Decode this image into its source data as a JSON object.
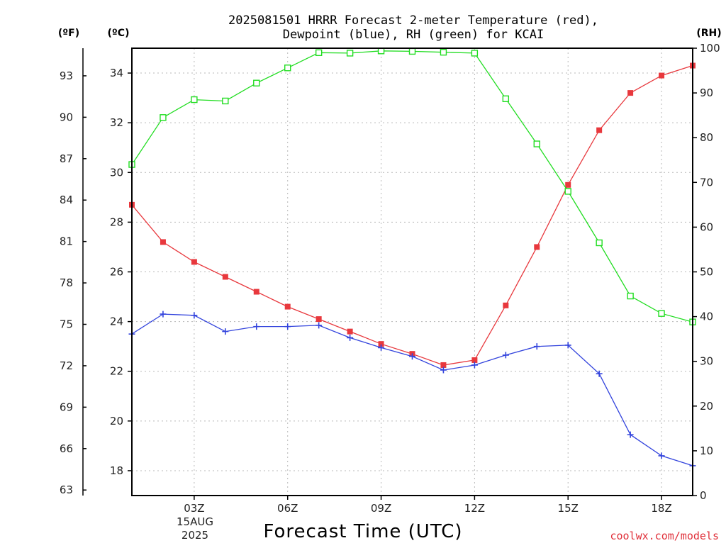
{
  "chart_data": {
    "type": "line",
    "title_line1": "2025081501 HRRR Forecast 2-meter Temperature (red),",
    "title_line2": "Dewpoint (blue), RH (green) for KCAI",
    "xlabel": "Forecast Time (UTC)",
    "credit": "coolwx.com/models",
    "x_hours": [
      1,
      2,
      3,
      4,
      5,
      6,
      7,
      8,
      9,
      10,
      11,
      12,
      13,
      14,
      15,
      16,
      17,
      18,
      19
    ],
    "xlim": [
      1,
      19
    ],
    "x_ticks": [
      {
        "hour": 3,
        "label": "03Z"
      },
      {
        "hour": 6,
        "label": "06Z"
      },
      {
        "hour": 9,
        "label": "09Z"
      },
      {
        "hour": 12,
        "label": "12Z"
      },
      {
        "hour": 15,
        "label": "15Z"
      },
      {
        "hour": 18,
        "label": "18Z"
      }
    ],
    "date_label": [
      "15AUG",
      "2025"
    ],
    "axes": {
      "celsius": {
        "unit_label": "(ºC)",
        "ylim": [
          17,
          35
        ],
        "ticks": [
          18,
          20,
          22,
          24,
          26,
          28,
          30,
          32,
          34
        ]
      },
      "fahrenheit": {
        "unit_label": "(ºF)",
        "ticks": [
          63,
          66,
          69,
          72,
          75,
          78,
          81,
          84,
          87,
          90,
          93
        ]
      },
      "rh": {
        "unit_label": "(RH)",
        "ylim": [
          0,
          100
        ],
        "ticks": [
          0,
          10,
          20,
          30,
          40,
          50,
          60,
          70,
          80,
          90,
          100
        ]
      }
    },
    "grid": true,
    "series": [
      {
        "key": "temperature",
        "axis": "celsius",
        "color": "#e8383d",
        "marker": "filled-square",
        "values": [
          28.7,
          27.2,
          26.4,
          25.8,
          25.2,
          24.6,
          24.1,
          23.6,
          23.1,
          22.7,
          22.25,
          22.45,
          24.65,
          27.0,
          29.5,
          31.7,
          33.2,
          33.9,
          34.3
        ]
      },
      {
        "key": "dewpoint",
        "axis": "celsius",
        "color": "#3344dd",
        "marker": "plus",
        "values": [
          23.5,
          24.3,
          24.25,
          23.6,
          23.8,
          23.8,
          23.85,
          23.35,
          22.95,
          22.6,
          22.05,
          22.25,
          22.65,
          23.0,
          23.05,
          21.9,
          19.45,
          18.6,
          18.2
        ]
      },
      {
        "key": "rh",
        "axis": "rh",
        "color": "#22dd22",
        "marker": "open-square",
        "values": [
          74,
          84.5,
          88.5,
          88.2,
          92.2,
          95.6,
          99.0,
          98.9,
          99.4,
          99.3,
          99.1,
          98.9,
          88.7,
          78.6,
          68.0,
          56.5,
          44.6,
          40.7,
          38.8
        ]
      }
    ]
  }
}
